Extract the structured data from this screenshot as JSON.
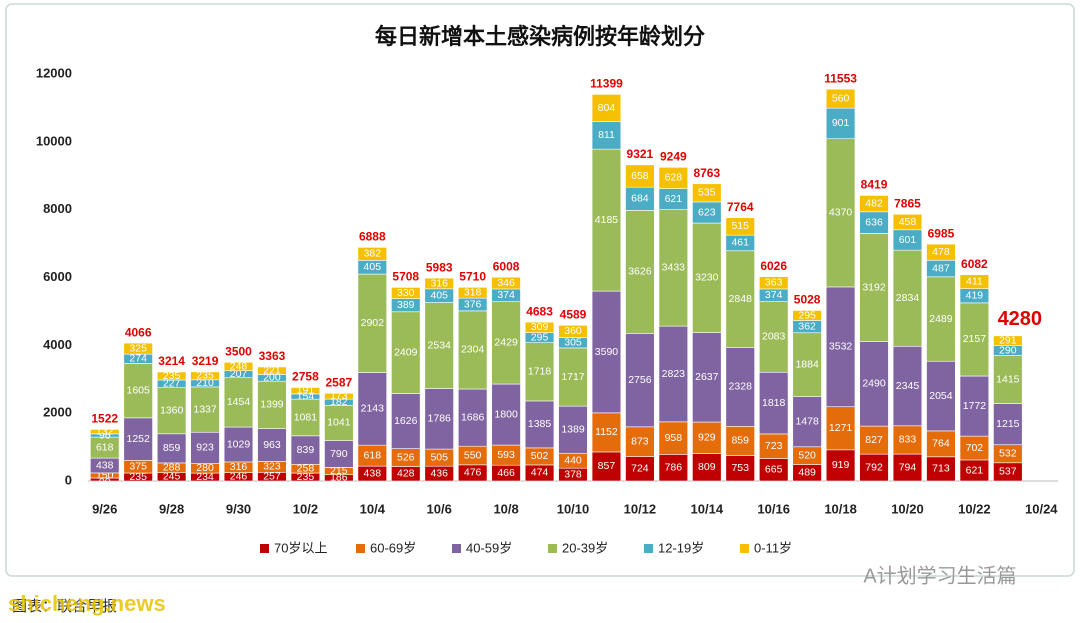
{
  "chart_data": {
    "type": "stacked_bar",
    "title": "每日新增本土感染病例按年龄划分",
    "categories": [
      "9/26",
      null,
      "9/28",
      null,
      "9/30",
      null,
      "10/2",
      null,
      "10/4",
      null,
      "10/6",
      null,
      "10/8",
      null,
      "10/10",
      null,
      "10/12",
      null,
      "10/14",
      null,
      "10/16",
      null,
      "10/18",
      null,
      "10/20",
      null,
      "10/22",
      null,
      "10/24"
    ],
    "series": [
      {
        "name": "70岁以上",
        "color": "#c00000",
        "values": [
          88,
          235,
          245,
          234,
          246,
          257,
          235,
          186,
          438,
          428,
          436,
          476,
          466,
          474,
          378,
          857,
          724,
          786,
          809,
          753,
          665,
          489,
          919,
          792,
          794,
          713,
          621,
          537,
          null
        ]
      },
      {
        "name": "60-69岁",
        "color": "#e46c0a",
        "values": [
          150,
          375,
          288,
          280,
          316,
          323,
          258,
          215,
          618,
          526,
          505,
          550,
          593,
          502,
          440,
          1152,
          873,
          958,
          929,
          859,
          723,
          520,
          1271,
          827,
          833,
          764,
          702,
          532,
          null
        ]
      },
      {
        "name": "40-59岁",
        "color": "#8064a2",
        "values": [
          438,
          1252,
          859,
          923,
          1029,
          963,
          839,
          790,
          2143,
          1626,
          1786,
          1686,
          1800,
          1385,
          1389,
          3590,
          2756,
          2823,
          2637,
          2328,
          1818,
          1478,
          3532,
          2490,
          2345,
          2054,
          1772,
          1215,
          null
        ]
      },
      {
        "name": "20-39岁",
        "color": "#9bbb59",
        "values": [
          618,
          1605,
          1360,
          1337,
          1454,
          1399,
          1081,
          1041,
          2902,
          2409,
          2534,
          2304,
          2429,
          1718,
          1717,
          4185,
          3626,
          3433,
          3230,
          2848,
          2083,
          1884,
          4370,
          3192,
          2834,
          2489,
          2157,
          1415,
          null
        ]
      },
      {
        "name": "12-19岁",
        "color": "#4bacc6",
        "values": [
          96,
          274,
          227,
          210,
          207,
          200,
          154,
          182,
          405,
          389,
          405,
          376,
          374,
          295,
          305,
          811,
          684,
          621,
          623,
          461,
          374,
          362,
          901,
          636,
          601,
          487,
          419,
          290,
          null
        ]
      },
      {
        "name": "0-11岁",
        "color": "#f5c000",
        "values": [
          132,
          325,
          235,
          235,
          248,
          221,
          191,
          173,
          382,
          330,
          316,
          318,
          346,
          309,
          360,
          804,
          658,
          628,
          535,
          515,
          363,
          295,
          560,
          482,
          458,
          478,
          411,
          291,
          null
        ]
      }
    ],
    "totals": [
      1522,
      4066,
      3214,
      3219,
      3500,
      3363,
      2758,
      2587,
      6888,
      5708,
      5983,
      5710,
      6008,
      4683,
      4589,
      11399,
      9321,
      9249,
      8763,
      7764,
      6026,
      5028,
      11553,
      8419,
      7865,
      6985,
      6082,
      4280,
      null
    ],
    "ylim": [
      0,
      12000
    ],
    "yticks": [
      0,
      2000,
      4000,
      6000,
      8000,
      10000,
      12000
    ],
    "grid": false,
    "legend": "bottom"
  },
  "watermarks": [
    "A计划学习生活篇",
    "shicheng.news"
  ],
  "source": "图表：联合早报"
}
